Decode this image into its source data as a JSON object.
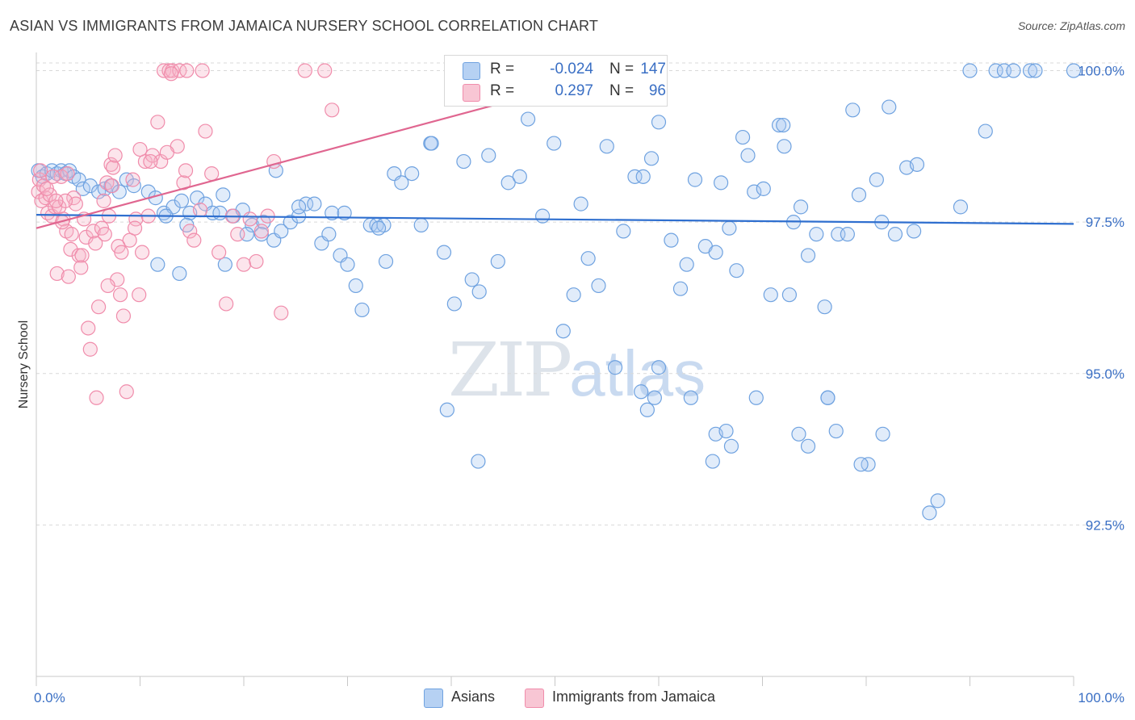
{
  "header": {
    "title": "ASIAN VS IMMIGRANTS FROM JAMAICA NURSERY SCHOOL CORRELATION CHART",
    "source": "Source: ZipAtlas.com"
  },
  "watermark": {
    "zip": "ZIP",
    "atlas": "atlas"
  },
  "legend": {
    "rows": [
      {
        "r_label": "R =",
        "r_value": "-0.024",
        "n_label": "N =",
        "n_value": "147",
        "color": "#a8c8f0"
      },
      {
        "r_label": "R =",
        "r_value": "0.297",
        "n_label": "N =",
        "n_value": "96",
        "color": "#f6b5c8"
      }
    ]
  },
  "bottom_legend": [
    {
      "label": "Asians",
      "color": "#a8c8f0"
    },
    {
      "label": "Immigrants from Jamaica",
      "color": "#f6b5c8"
    }
  ],
  "chart_data": {
    "type": "scatter",
    "title": "ASIAN VS IMMIGRANTS FROM JAMAICA NURSERY SCHOOL CORRELATION CHART",
    "xlabel": "",
    "ylabel": "Nursery School",
    "xlim": [
      0,
      100
    ],
    "ylim": [
      90.0,
      100.3
    ],
    "x_tick_labels": [
      "0.0%",
      "100.0%"
    ],
    "y_ticks": [
      92.5,
      95.0,
      97.5,
      100.0
    ],
    "y_tick_labels": [
      "92.5%",
      "95.0%",
      "97.5%",
      "100.0%"
    ],
    "grid": true,
    "legend_position": "top-center",
    "series": [
      {
        "name": "Asians",
        "color": "#6fa2e0",
        "trend": {
          "x0": 0,
          "y0": 97.62,
          "x1": 100,
          "y1": 97.47,
          "color": "#2f6fcf"
        },
        "points": [
          [
            0.2,
            98.35
          ],
          [
            0.6,
            98.25
          ],
          [
            1.0,
            98.3
          ],
          [
            1.5,
            98.35
          ],
          [
            2.0,
            98.3
          ],
          [
            2.4,
            98.35
          ],
          [
            2.8,
            98.3
          ],
          [
            3.2,
            98.35
          ],
          [
            3.6,
            98.25
          ],
          [
            4.1,
            98.2
          ],
          [
            4.5,
            98.05
          ],
          [
            5.2,
            98.1
          ],
          [
            6.0,
            98.0
          ],
          [
            6.6,
            98.05
          ],
          [
            7.2,
            98.1
          ],
          [
            8.0,
            98.0
          ],
          [
            8.7,
            98.2
          ],
          [
            9.4,
            98.1
          ],
          [
            10.8,
            98.0
          ],
          [
            11.5,
            97.9
          ],
          [
            12.3,
            97.65
          ],
          [
            13.2,
            97.75
          ],
          [
            14.0,
            97.85
          ],
          [
            14.8,
            97.65
          ],
          [
            15.5,
            97.9
          ],
          [
            16.3,
            97.8
          ],
          [
            17.0,
            97.65
          ],
          [
            18.0,
            97.95
          ],
          [
            19.0,
            97.6
          ],
          [
            19.9,
            97.7
          ],
          [
            20.8,
            97.45
          ],
          [
            21.9,
            97.5
          ],
          [
            22.9,
            97.2
          ],
          [
            23.6,
            97.35
          ],
          [
            24.5,
            97.5
          ],
          [
            25.3,
            97.6
          ],
          [
            26.0,
            97.8
          ],
          [
            26.8,
            97.8
          ],
          [
            27.5,
            97.15
          ],
          [
            28.5,
            97.65
          ],
          [
            29.3,
            96.95
          ],
          [
            30.0,
            96.8
          ],
          [
            30.8,
            96.45
          ],
          [
            31.4,
            96.05
          ],
          [
            32.2,
            97.45
          ],
          [
            32.8,
            97.45
          ],
          [
            33.7,
            96.85
          ],
          [
            34.5,
            98.3
          ],
          [
            35.2,
            98.15
          ],
          [
            36.2,
            98.3
          ],
          [
            37.1,
            97.45
          ],
          [
            38.0,
            98.8
          ],
          [
            39.3,
            97.0
          ],
          [
            40.3,
            96.15
          ],
          [
            41.2,
            98.5
          ],
          [
            42.0,
            96.55
          ],
          [
            42.7,
            96.35
          ],
          [
            43.6,
            98.6
          ],
          [
            44.5,
            96.85
          ],
          [
            45.5,
            98.15
          ],
          [
            46.6,
            98.25
          ],
          [
            47.4,
            99.2
          ],
          [
            48.8,
            97.6
          ],
          [
            49.9,
            98.8
          ],
          [
            50.8,
            95.7
          ],
          [
            51.8,
            96.3
          ],
          [
            52.5,
            97.8
          ],
          [
            53.2,
            96.9
          ],
          [
            54.2,
            96.45
          ],
          [
            55.0,
            98.75
          ],
          [
            55.8,
            95.1
          ],
          [
            56.6,
            97.35
          ],
          [
            57.7,
            98.25
          ],
          [
            58.5,
            98.25
          ],
          [
            59.3,
            98.55
          ],
          [
            60.0,
            99.15
          ],
          [
            61.2,
            97.2
          ],
          [
            62.1,
            96.4
          ],
          [
            62.7,
            96.8
          ],
          [
            63.5,
            98.2
          ],
          [
            64.5,
            97.1
          ],
          [
            65.5,
            97.0
          ],
          [
            66.0,
            98.15
          ],
          [
            66.8,
            97.4
          ],
          [
            67.5,
            96.7
          ],
          [
            68.1,
            98.9
          ],
          [
            68.6,
            98.6
          ],
          [
            69.2,
            98.0
          ],
          [
            70.1,
            98.05
          ],
          [
            70.8,
            96.3
          ],
          [
            71.6,
            99.1
          ],
          [
            72.1,
            98.75
          ],
          [
            73.0,
            97.5
          ],
          [
            73.7,
            97.75
          ],
          [
            74.4,
            96.95
          ],
          [
            75.2,
            97.3
          ],
          [
            76.0,
            96.1
          ],
          [
            77.3,
            97.3
          ],
          [
            78.2,
            97.3
          ],
          [
            78.7,
            99.35
          ],
          [
            79.3,
            97.95
          ],
          [
            80.2,
            93.5
          ],
          [
            81.0,
            98.2
          ],
          [
            81.5,
            97.5
          ],
          [
            82.2,
            99.4
          ],
          [
            82.8,
            97.3
          ],
          [
            83.9,
            98.4
          ],
          [
            84.6,
            97.35
          ],
          [
            84.9,
            98.45
          ],
          [
            86.1,
            92.7
          ],
          [
            86.9,
            92.9
          ],
          [
            89.1,
            97.75
          ],
          [
            90.0,
            100.0
          ],
          [
            91.5,
            99.0
          ],
          [
            92.5,
            100.0
          ],
          [
            93.3,
            100.0
          ],
          [
            94.2,
            100.0
          ],
          [
            95.8,
            100.0
          ],
          [
            96.3,
            100.0
          ],
          [
            100.0,
            100.0
          ],
          [
            58.3,
            94.7
          ],
          [
            59.6,
            94.6
          ],
          [
            58.9,
            94.4
          ],
          [
            63.1,
            94.6
          ],
          [
            65.2,
            93.55
          ],
          [
            65.5,
            94.0
          ],
          [
            66.5,
            94.05
          ],
          [
            67.0,
            93.8
          ],
          [
            73.5,
            94.0
          ],
          [
            74.4,
            93.8
          ],
          [
            76.3,
            94.6
          ],
          [
            77.1,
            94.05
          ],
          [
            76.3,
            94.6
          ],
          [
            79.5,
            93.5
          ],
          [
            81.6,
            94.0
          ],
          [
            69.4,
            94.6
          ],
          [
            72.6,
            96.3
          ],
          [
            72.0,
            99.1
          ],
          [
            60.0,
            95.1
          ],
          [
            42.6,
            93.55
          ],
          [
            39.6,
            94.4
          ],
          [
            38.1,
            98.8
          ],
          [
            33.5,
            97.45
          ],
          [
            33.0,
            97.4
          ],
          [
            21.7,
            97.3
          ],
          [
            17.7,
            97.65
          ],
          [
            12.5,
            97.6
          ],
          [
            14.5,
            97.45
          ],
          [
            11.7,
            96.8
          ],
          [
            13.8,
            96.65
          ],
          [
            18.2,
            96.8
          ],
          [
            20.3,
            97.3
          ],
          [
            23.1,
            98.35
          ],
          [
            25.3,
            97.75
          ],
          [
            28.2,
            97.3
          ],
          [
            29.7,
            97.65
          ]
        ]
      },
      {
        "name": "Immigrants from Jamaica",
        "color": "#f08cab",
        "trend": {
          "x0": 0,
          "y0": 97.4,
          "x1": 50,
          "y1": 99.7,
          "color": "#e06690"
        },
        "points": [
          [
            0.2,
            98.0
          ],
          [
            0.3,
            98.2
          ],
          [
            0.5,
            97.85
          ],
          [
            0.7,
            98.1
          ],
          [
            0.9,
            97.9
          ],
          [
            1.1,
            97.65
          ],
          [
            1.3,
            97.95
          ],
          [
            1.5,
            97.6
          ],
          [
            1.8,
            97.75
          ],
          [
            2.0,
            96.65
          ],
          [
            2.2,
            97.75
          ],
          [
            2.4,
            98.25
          ],
          [
            2.6,
            97.55
          ],
          [
            2.9,
            97.35
          ],
          [
            3.1,
            96.6
          ],
          [
            3.3,
            97.05
          ],
          [
            3.6,
            97.9
          ],
          [
            3.8,
            97.8
          ],
          [
            4.1,
            96.95
          ],
          [
            4.4,
            96.95
          ],
          [
            4.6,
            97.55
          ],
          [
            4.8,
            97.25
          ],
          [
            5.0,
            95.75
          ],
          [
            5.2,
            95.4
          ],
          [
            5.5,
            97.35
          ],
          [
            5.8,
            94.6
          ],
          [
            6.0,
            96.1
          ],
          [
            6.3,
            97.4
          ],
          [
            6.6,
            97.3
          ],
          [
            6.8,
            98.15
          ],
          [
            7.0,
            97.6
          ],
          [
            7.2,
            98.45
          ],
          [
            7.4,
            98.4
          ],
          [
            7.6,
            98.6
          ],
          [
            7.8,
            96.55
          ],
          [
            8.1,
            96.3
          ],
          [
            8.4,
            95.95
          ],
          [
            8.7,
            94.7
          ],
          [
            9.0,
            97.2
          ],
          [
            9.3,
            98.2
          ],
          [
            9.6,
            97.55
          ],
          [
            9.9,
            96.3
          ],
          [
            10.2,
            97.0
          ],
          [
            10.5,
            98.5
          ],
          [
            10.8,
            97.6
          ],
          [
            11.2,
            98.6
          ],
          [
            11.7,
            99.15
          ],
          [
            12.0,
            98.5
          ],
          [
            12.3,
            100.0
          ],
          [
            12.8,
            100.0
          ],
          [
            13.1,
            100.0
          ],
          [
            13.6,
            98.75
          ],
          [
            14.2,
            98.15
          ],
          [
            14.8,
            97.35
          ],
          [
            15.2,
            97.2
          ],
          [
            15.8,
            97.7
          ],
          [
            16.3,
            99.0
          ],
          [
            16.9,
            98.3
          ],
          [
            17.6,
            97.0
          ],
          [
            18.3,
            96.15
          ],
          [
            18.9,
            97.6
          ],
          [
            19.4,
            97.3
          ],
          [
            20.0,
            96.8
          ],
          [
            20.6,
            97.55
          ],
          [
            21.2,
            96.85
          ],
          [
            21.7,
            97.35
          ],
          [
            22.3,
            97.6
          ],
          [
            22.9,
            98.5
          ],
          [
            23.6,
            96.0
          ],
          [
            25.9,
            100.0
          ],
          [
            27.8,
            100.0
          ],
          [
            28.5,
            99.35
          ],
          [
            16.0,
            100.0
          ],
          [
            13.8,
            100.0
          ],
          [
            14.5,
            100.0
          ],
          [
            13.0,
            99.95
          ],
          [
            9.5,
            97.4
          ],
          [
            10.0,
            98.7
          ],
          [
            11.0,
            98.5
          ],
          [
            12.6,
            98.65
          ],
          [
            14.4,
            98.35
          ],
          [
            7.9,
            97.1
          ],
          [
            8.2,
            97.0
          ],
          [
            6.9,
            96.45
          ],
          [
            7.3,
            98.1
          ],
          [
            6.5,
            97.85
          ],
          [
            5.7,
            97.15
          ],
          [
            4.3,
            96.75
          ],
          [
            3.4,
            97.3
          ],
          [
            2.8,
            97.85
          ],
          [
            1.6,
            98.25
          ],
          [
            0.4,
            98.35
          ],
          [
            1.0,
            98.05
          ],
          [
            1.9,
            97.85
          ],
          [
            2.5,
            97.5
          ],
          [
            3.0,
            98.3
          ]
        ]
      }
    ]
  }
}
